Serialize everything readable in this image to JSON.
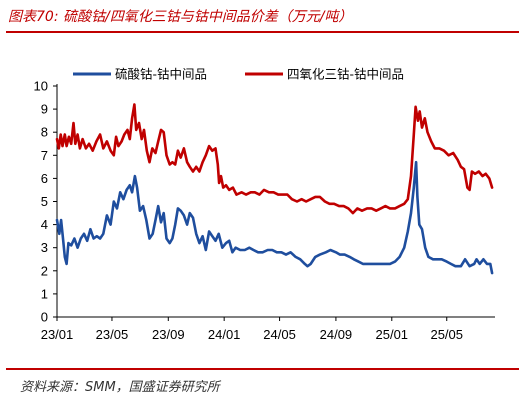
{
  "header": {
    "title": "图表70:  硫酸钴/四氧化三钴与钴中间品价差（万元/吨）"
  },
  "footer": {
    "source": "资料来源：SMM，国盛证券研究所"
  },
  "colors": {
    "accent": "#c00000",
    "series_blue": "#1f4e9e",
    "series_red": "#c00000"
  },
  "chart_data": {
    "type": "line",
    "title": "",
    "xlabel": "",
    "ylabel": "",
    "ylim": [
      0,
      10
    ],
    "yticks": [
      "0",
      "1",
      "2",
      "3",
      "4",
      "5",
      "6",
      "7",
      "8",
      "9",
      "10"
    ],
    "xlim": [
      "2023-01-01",
      "2025-08-10"
    ],
    "xticks": [
      {
        "label": "23/01",
        "date": "2023-01-01"
      },
      {
        "label": "23/05",
        "date": "2023-05-01"
      },
      {
        "label": "23/09",
        "date": "2023-09-01"
      },
      {
        "label": "24/01",
        "date": "2024-01-01"
      },
      {
        "label": "24/05",
        "date": "2024-05-01"
      },
      {
        "label": "24/09",
        "date": "2024-09-01"
      },
      {
        "label": "25/01",
        "date": "2025-01-01"
      },
      {
        "label": "25/05",
        "date": "2025-05-01"
      }
    ],
    "grid": false,
    "legend_position": "top",
    "series": [
      {
        "name": "硫酸钴-钴中间品",
        "color": "#1f4e9e",
        "points": [
          [
            "2023-01-01",
            4.2
          ],
          [
            "2023-01-06",
            3.6
          ],
          [
            "2023-01-10",
            4.2
          ],
          [
            "2023-01-14",
            3.4
          ],
          [
            "2023-01-18",
            2.6
          ],
          [
            "2023-01-22",
            2.3
          ],
          [
            "2023-01-26",
            3.2
          ],
          [
            "2023-02-01",
            3.1
          ],
          [
            "2023-02-08",
            3.4
          ],
          [
            "2023-02-15",
            3.0
          ],
          [
            "2023-02-22",
            3.4
          ],
          [
            "2023-03-01",
            3.6
          ],
          [
            "2023-03-08",
            3.3
          ],
          [
            "2023-03-15",
            3.8
          ],
          [
            "2023-03-22",
            3.4
          ],
          [
            "2023-03-29",
            3.5
          ],
          [
            "2023-04-05",
            3.4
          ],
          [
            "2023-04-12",
            3.6
          ],
          [
            "2023-04-20",
            4.4
          ],
          [
            "2023-04-28",
            4.0
          ],
          [
            "2023-05-05",
            5.0
          ],
          [
            "2023-05-12",
            4.7
          ],
          [
            "2023-05-19",
            5.4
          ],
          [
            "2023-05-26",
            5.1
          ],
          [
            "2023-06-02",
            5.5
          ],
          [
            "2023-06-09",
            5.7
          ],
          [
            "2023-06-14",
            5.4
          ],
          [
            "2023-06-20",
            6.1
          ],
          [
            "2023-06-25",
            5.6
          ],
          [
            "2023-07-01",
            4.6
          ],
          [
            "2023-07-08",
            4.8
          ],
          [
            "2023-07-15",
            4.2
          ],
          [
            "2023-07-22",
            3.4
          ],
          [
            "2023-07-29",
            3.6
          ],
          [
            "2023-08-04",
            4.2
          ],
          [
            "2023-08-10",
            4.8
          ],
          [
            "2023-08-16",
            4.1
          ],
          [
            "2023-08-22",
            4.5
          ],
          [
            "2023-08-28",
            3.4
          ],
          [
            "2023-09-04",
            3.2
          ],
          [
            "2023-09-10",
            3.4
          ],
          [
            "2023-09-16",
            4.0
          ],
          [
            "2023-09-22",
            4.7
          ],
          [
            "2023-09-28",
            4.6
          ],
          [
            "2023-10-05",
            4.4
          ],
          [
            "2023-10-12",
            4.0
          ],
          [
            "2023-10-18",
            4.5
          ],
          [
            "2023-10-25",
            4.3
          ],
          [
            "2023-11-01",
            3.6
          ],
          [
            "2023-11-08",
            3.2
          ],
          [
            "2023-11-15",
            3.5
          ],
          [
            "2023-11-22",
            2.9
          ],
          [
            "2023-11-29",
            3.7
          ],
          [
            "2023-12-06",
            3.5
          ],
          [
            "2023-12-13",
            3.3
          ],
          [
            "2023-12-20",
            3.6
          ],
          [
            "2023-12-28",
            3.0
          ],
          [
            "2024-01-05",
            3.2
          ],
          [
            "2024-01-12",
            3.3
          ],
          [
            "2024-01-19",
            2.8
          ],
          [
            "2024-01-26",
            3.0
          ],
          [
            "2024-02-05",
            2.9
          ],
          [
            "2024-02-15",
            2.9
          ],
          [
            "2024-02-25",
            3.0
          ],
          [
            "2024-03-05",
            2.9
          ],
          [
            "2024-03-15",
            2.8
          ],
          [
            "2024-03-25",
            2.8
          ],
          [
            "2024-04-05",
            2.9
          ],
          [
            "2024-04-15",
            2.9
          ],
          [
            "2024-04-25",
            2.8
          ],
          [
            "2024-05-05",
            2.8
          ],
          [
            "2024-05-15",
            2.7
          ],
          [
            "2024-05-25",
            2.8
          ],
          [
            "2024-06-05",
            2.6
          ],
          [
            "2024-06-15",
            2.5
          ],
          [
            "2024-06-25",
            2.3
          ],
          [
            "2024-07-01",
            2.2
          ],
          [
            "2024-07-08",
            2.3
          ],
          [
            "2024-07-18",
            2.6
          ],
          [
            "2024-07-28",
            2.7
          ],
          [
            "2024-08-10",
            2.8
          ],
          [
            "2024-08-20",
            2.9
          ],
          [
            "2024-09-01",
            2.8
          ],
          [
            "2024-09-10",
            2.7
          ],
          [
            "2024-09-20",
            2.7
          ],
          [
            "2024-10-01",
            2.6
          ],
          [
            "2024-10-10",
            2.5
          ],
          [
            "2024-10-20",
            2.4
          ],
          [
            "2024-10-30",
            2.3
          ],
          [
            "2024-11-08",
            2.3
          ],
          [
            "2024-11-18",
            2.3
          ],
          [
            "2024-11-28",
            2.3
          ],
          [
            "2024-12-08",
            2.3
          ],
          [
            "2024-12-18",
            2.3
          ],
          [
            "2024-12-28",
            2.3
          ],
          [
            "2025-01-08",
            2.4
          ],
          [
            "2025-01-18",
            2.6
          ],
          [
            "2025-01-28",
            3.0
          ],
          [
            "2025-02-05",
            3.7
          ],
          [
            "2025-02-12",
            4.5
          ],
          [
            "2025-02-18",
            5.6
          ],
          [
            "2025-02-23",
            6.7
          ],
          [
            "2025-02-26",
            5.2
          ],
          [
            "2025-03-02",
            4.0
          ],
          [
            "2025-03-08",
            3.8
          ],
          [
            "2025-03-15",
            3.0
          ],
          [
            "2025-03-22",
            2.6
          ],
          [
            "2025-04-01",
            2.5
          ],
          [
            "2025-04-10",
            2.5
          ],
          [
            "2025-04-20",
            2.5
          ],
          [
            "2025-05-01",
            2.4
          ],
          [
            "2025-05-10",
            2.3
          ],
          [
            "2025-05-20",
            2.2
          ],
          [
            "2025-06-01",
            2.2
          ],
          [
            "2025-06-10",
            2.5
          ],
          [
            "2025-06-20",
            2.2
          ],
          [
            "2025-06-30",
            2.3
          ],
          [
            "2025-07-05",
            2.5
          ],
          [
            "2025-07-12",
            2.3
          ],
          [
            "2025-07-20",
            2.5
          ],
          [
            "2025-07-28",
            2.3
          ],
          [
            "2025-08-04",
            2.3
          ],
          [
            "2025-08-08",
            1.9
          ]
        ]
      },
      {
        "name": "四氧化三钴-钴中间品",
        "color": "#c00000",
        "points": [
          [
            "2023-01-01",
            7.7
          ],
          [
            "2023-01-05",
            7.3
          ],
          [
            "2023-01-09",
            7.9
          ],
          [
            "2023-01-13",
            7.4
          ],
          [
            "2023-01-18",
            7.9
          ],
          [
            "2023-01-22",
            7.4
          ],
          [
            "2023-01-27",
            7.8
          ],
          [
            "2023-02-01",
            7.5
          ],
          [
            "2023-02-06",
            8.4
          ],
          [
            "2023-02-10",
            7.5
          ],
          [
            "2023-02-15",
            7.9
          ],
          [
            "2023-02-20",
            7.3
          ],
          [
            "2023-02-26",
            7.7
          ],
          [
            "2023-03-05",
            7.3
          ],
          [
            "2023-03-12",
            7.5
          ],
          [
            "2023-03-20",
            7.2
          ],
          [
            "2023-03-28",
            7.6
          ],
          [
            "2023-04-05",
            7.9
          ],
          [
            "2023-04-12",
            7.3
          ],
          [
            "2023-04-20",
            7.6
          ],
          [
            "2023-04-28",
            7.2
          ],
          [
            "2023-05-05",
            7.0
          ],
          [
            "2023-05-10",
            7.8
          ],
          [
            "2023-05-15",
            7.4
          ],
          [
            "2023-05-22",
            7.6
          ],
          [
            "2023-05-28",
            7.9
          ],
          [
            "2023-06-04",
            8.1
          ],
          [
            "2023-06-09",
            7.7
          ],
          [
            "2023-06-14",
            8.6
          ],
          [
            "2023-06-19",
            9.2
          ],
          [
            "2023-06-23",
            8.1
          ],
          [
            "2023-06-29",
            8.4
          ],
          [
            "2023-07-05",
            7.7
          ],
          [
            "2023-07-10",
            8.1
          ],
          [
            "2023-07-16",
            7.2
          ],
          [
            "2023-07-22",
            6.7
          ],
          [
            "2023-07-28",
            7.3
          ],
          [
            "2023-08-04",
            7.1
          ],
          [
            "2023-08-10",
            7.6
          ],
          [
            "2023-08-16",
            8.1
          ],
          [
            "2023-08-22",
            8.0
          ],
          [
            "2023-08-28",
            7.0
          ],
          [
            "2023-09-04",
            6.6
          ],
          [
            "2023-09-10",
            6.7
          ],
          [
            "2023-09-16",
            6.6
          ],
          [
            "2023-09-22",
            7.2
          ],
          [
            "2023-09-28",
            6.9
          ],
          [
            "2023-10-05",
            7.3
          ],
          [
            "2023-10-12",
            6.7
          ],
          [
            "2023-10-18",
            6.5
          ],
          [
            "2023-10-25",
            6.3
          ],
          [
            "2023-11-01",
            6.5
          ],
          [
            "2023-11-08",
            6.3
          ],
          [
            "2023-11-15",
            6.7
          ],
          [
            "2023-11-22",
            7.0
          ],
          [
            "2023-11-29",
            7.4
          ],
          [
            "2023-12-06",
            7.2
          ],
          [
            "2023-12-13",
            7.3
          ],
          [
            "2023-12-18",
            6.6
          ],
          [
            "2023-12-21",
            5.8
          ],
          [
            "2023-12-25",
            6.1
          ],
          [
            "2023-12-30",
            5.6
          ],
          [
            "2024-01-05",
            5.7
          ],
          [
            "2024-01-12",
            5.5
          ],
          [
            "2024-01-20",
            5.6
          ],
          [
            "2024-01-28",
            5.3
          ],
          [
            "2024-02-08",
            5.4
          ],
          [
            "2024-02-18",
            5.3
          ],
          [
            "2024-02-28",
            5.4
          ],
          [
            "2024-03-08",
            5.4
          ],
          [
            "2024-03-18",
            5.3
          ],
          [
            "2024-03-28",
            5.5
          ],
          [
            "2024-04-08",
            5.4
          ],
          [
            "2024-04-18",
            5.4
          ],
          [
            "2024-04-28",
            5.3
          ],
          [
            "2024-05-08",
            5.3
          ],
          [
            "2024-05-18",
            5.3
          ],
          [
            "2024-05-28",
            5.1
          ],
          [
            "2024-06-08",
            5.0
          ],
          [
            "2024-06-18",
            5.1
          ],
          [
            "2024-06-28",
            5.0
          ],
          [
            "2024-07-08",
            5.1
          ],
          [
            "2024-07-18",
            5.2
          ],
          [
            "2024-07-28",
            5.2
          ],
          [
            "2024-08-08",
            5.0
          ],
          [
            "2024-08-18",
            4.9
          ],
          [
            "2024-08-28",
            4.9
          ],
          [
            "2024-09-08",
            4.8
          ],
          [
            "2024-09-18",
            4.8
          ],
          [
            "2024-09-28",
            4.7
          ],
          [
            "2024-10-08",
            4.5
          ],
          [
            "2024-10-18",
            4.7
          ],
          [
            "2024-10-28",
            4.6
          ],
          [
            "2024-11-08",
            4.7
          ],
          [
            "2024-11-18",
            4.7
          ],
          [
            "2024-11-28",
            4.6
          ],
          [
            "2024-12-08",
            4.7
          ],
          [
            "2024-12-18",
            4.8
          ],
          [
            "2024-12-28",
            4.7
          ],
          [
            "2025-01-08",
            4.7
          ],
          [
            "2025-01-18",
            4.8
          ],
          [
            "2025-01-28",
            4.9
          ],
          [
            "2025-02-05",
            5.1
          ],
          [
            "2025-02-12",
            6.1
          ],
          [
            "2025-02-18",
            7.9
          ],
          [
            "2025-02-22",
            9.1
          ],
          [
            "2025-02-27",
            8.5
          ],
          [
            "2025-03-03",
            8.9
          ],
          [
            "2025-03-08",
            8.2
          ],
          [
            "2025-03-14",
            8.6
          ],
          [
            "2025-03-20",
            8.0
          ],
          [
            "2025-03-28",
            7.6
          ],
          [
            "2025-04-05",
            7.3
          ],
          [
            "2025-04-15",
            7.3
          ],
          [
            "2025-04-25",
            7.2
          ],
          [
            "2025-05-05",
            7.0
          ],
          [
            "2025-05-15",
            7.1
          ],
          [
            "2025-05-25",
            6.8
          ],
          [
            "2025-06-01",
            6.5
          ],
          [
            "2025-06-08",
            6.4
          ],
          [
            "2025-06-15",
            5.6
          ],
          [
            "2025-06-20",
            5.5
          ],
          [
            "2025-06-25",
            6.3
          ],
          [
            "2025-07-02",
            6.2
          ],
          [
            "2025-07-10",
            6.3
          ],
          [
            "2025-07-18",
            6.1
          ],
          [
            "2025-07-25",
            6.2
          ],
          [
            "2025-08-02",
            6.0
          ],
          [
            "2025-08-08",
            5.6
          ]
        ]
      }
    ]
  }
}
